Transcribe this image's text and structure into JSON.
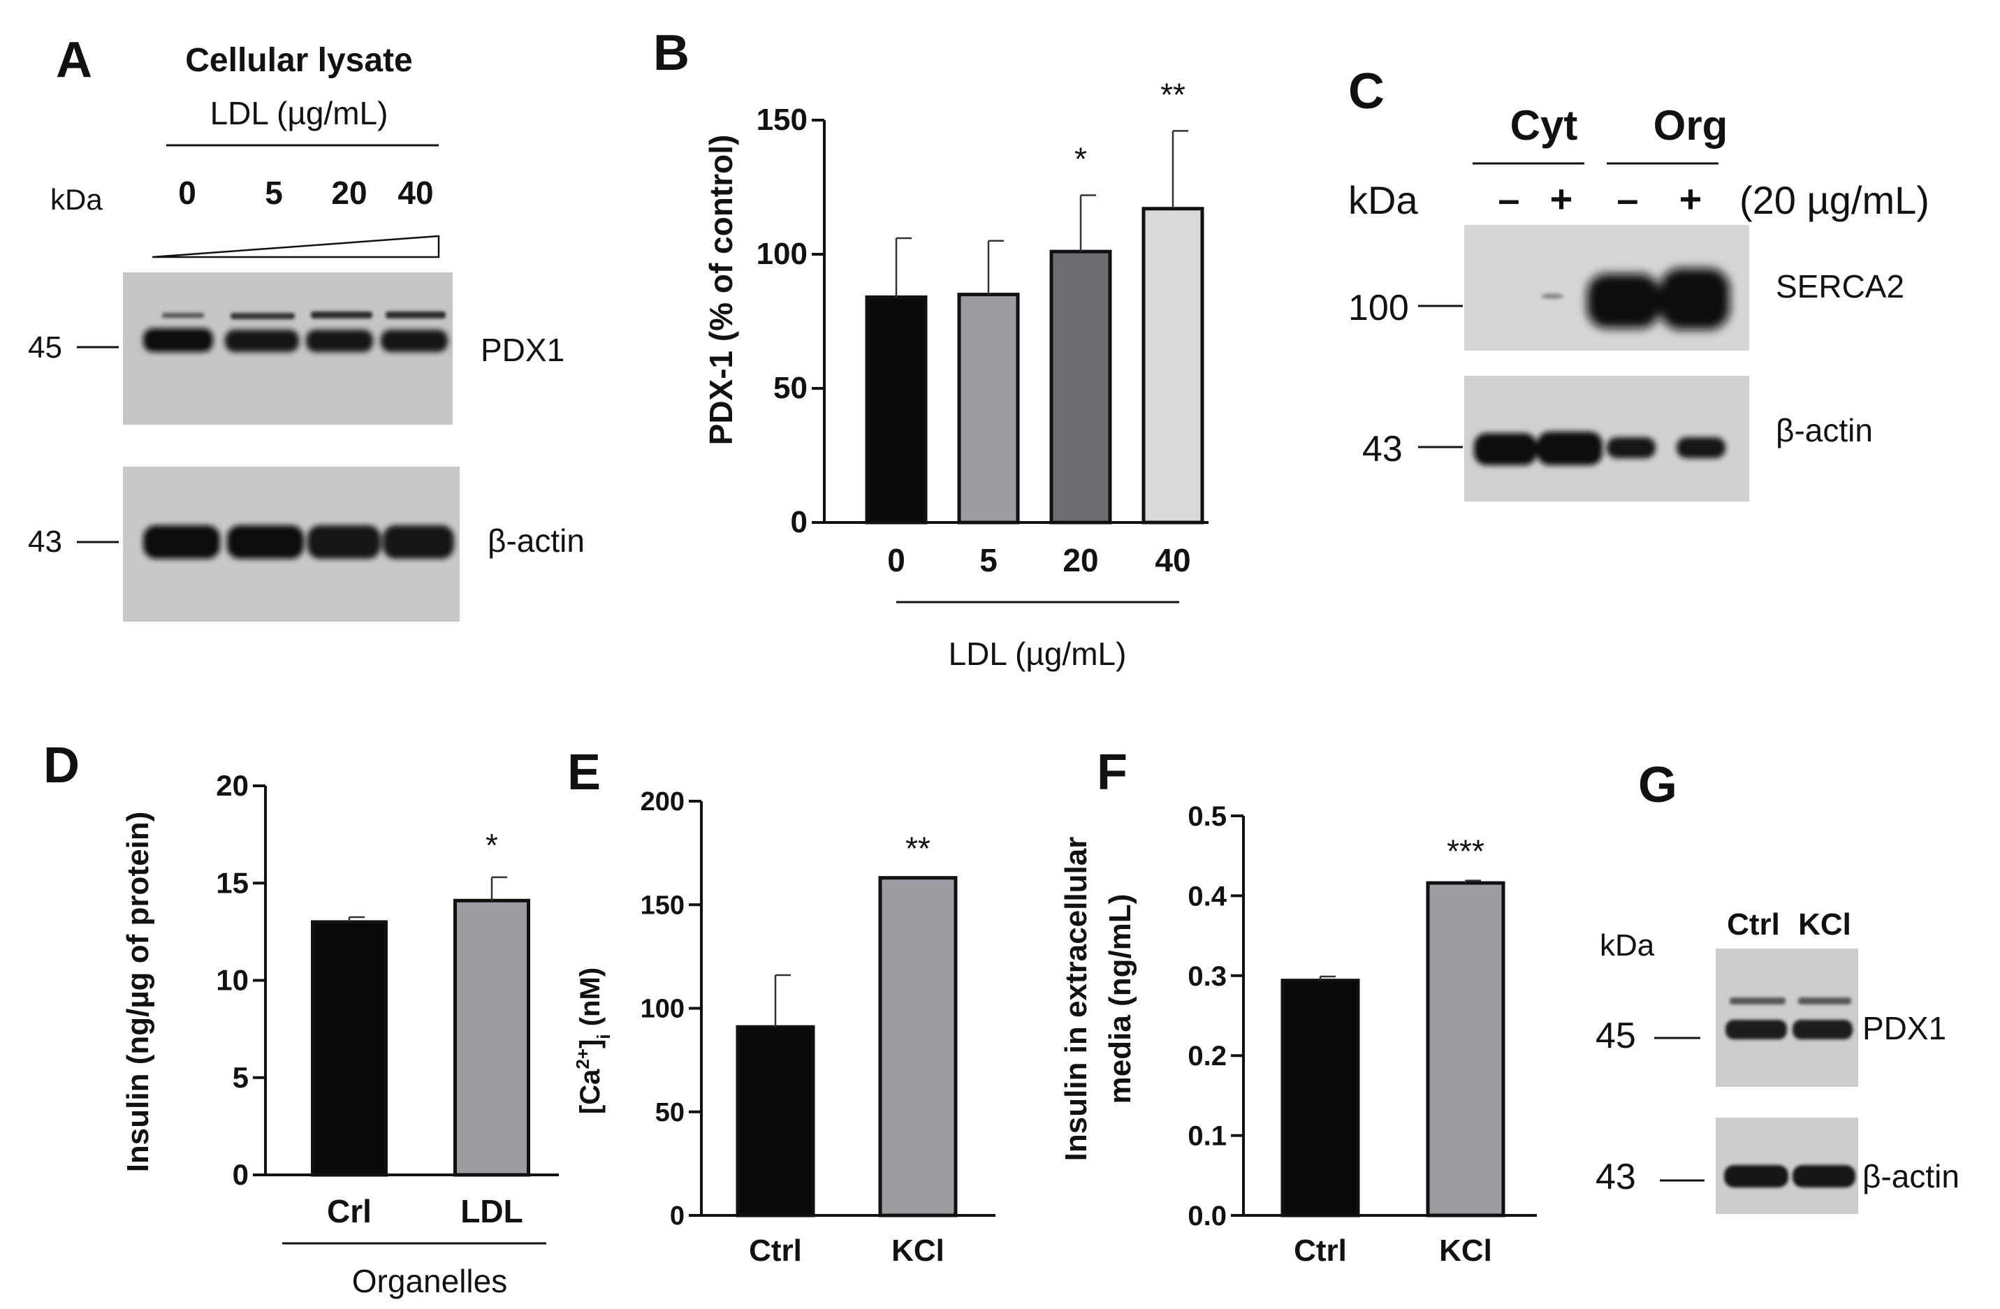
{
  "panels": {
    "A": {
      "letter": "A",
      "title": "Cellular lysate",
      "subtitle": "LDL (µg/mL)",
      "kda": "kDa",
      "lanes": [
        "0",
        "5",
        "20",
        "40"
      ],
      "marker_top": "45",
      "marker_bottom": "43",
      "band_top": "PDX1",
      "band_bottom": "β-actin"
    },
    "C": {
      "letter": "C",
      "group1": "Cyt",
      "group2": "Org",
      "kda": "kDa",
      "lanes": [
        "–",
        "+",
        "–",
        "+"
      ],
      "conc": "(20 µg/mL)",
      "marker_top": "100",
      "marker_bottom": "43",
      "band_top": "SERCA2",
      "band_bottom": "β-actin"
    },
    "G": {
      "letter": "G",
      "kda": "kDa",
      "lanes": [
        "Ctrl",
        "KCl"
      ],
      "marker_top": "45",
      "marker_bottom": "43",
      "band_top": "PDX1",
      "band_bottom": "β-actin"
    }
  },
  "chart_data": [
    {
      "panel": "B",
      "type": "bar",
      "ylabel": "PDX-1 (% of control)",
      "xlabel": "LDL (µg/mL)",
      "categories": [
        "0",
        "5",
        "20",
        "40"
      ],
      "values": [
        84,
        85,
        101,
        117
      ],
      "errors": [
        22,
        20,
        21,
        29
      ],
      "significance": [
        "",
        "",
        "*",
        "**"
      ],
      "colors": [
        "#0a0a0a",
        "#9c9ca3",
        "#6e6e72",
        "#d9d9d9"
      ],
      "ylim": [
        0,
        150
      ],
      "yticks": [
        "0",
        "50",
        "100",
        "150"
      ]
    },
    {
      "panel": "D",
      "type": "bar",
      "ylabel": "Insulin (ng/µg of protein)",
      "xlabel": "Organelles",
      "categories": [
        "Crl",
        "LDL"
      ],
      "values": [
        13.0,
        14.1
      ],
      "errors": [
        0.25,
        1.2
      ],
      "significance": [
        "",
        "*"
      ],
      "colors": [
        "#0a0a0a",
        "#9c9ca3"
      ],
      "ylim": [
        0,
        20
      ],
      "yticks": [
        "0",
        "5",
        "10",
        "15",
        "20"
      ]
    },
    {
      "panel": "E",
      "type": "bar",
      "ylabel_main": "[Ca",
      "ylabel_sup": "2+",
      "ylabel_rest": "]",
      "ylabel_sub": "i",
      "ylabel_unit": " (nM)",
      "categories": [
        "Ctrl",
        "KCl"
      ],
      "values": [
        91,
        163
      ],
      "errors": [
        25,
        0
      ],
      "significance": [
        "",
        "**"
      ],
      "colors": [
        "#0a0a0a",
        "#9c9ca3"
      ],
      "ylim": [
        0,
        200
      ],
      "yticks": [
        "0",
        "50",
        "100",
        "150",
        "200"
      ]
    },
    {
      "panel": "F",
      "type": "bar",
      "ylabel_line1": "Insulin in extracellular",
      "ylabel_line2": "media (ng/mL)",
      "categories": [
        "Ctrl",
        "KCl"
      ],
      "values": [
        0.294,
        0.416
      ],
      "errors": [
        0.005,
        0.003
      ],
      "significance": [
        "",
        "***"
      ],
      "colors": [
        "#0a0a0a",
        "#9c9ca3"
      ],
      "ylim": [
        0,
        0.5
      ],
      "yticks": [
        "0.0",
        "0.1",
        "0.2",
        "0.3",
        "0.4",
        "0.5"
      ]
    }
  ]
}
